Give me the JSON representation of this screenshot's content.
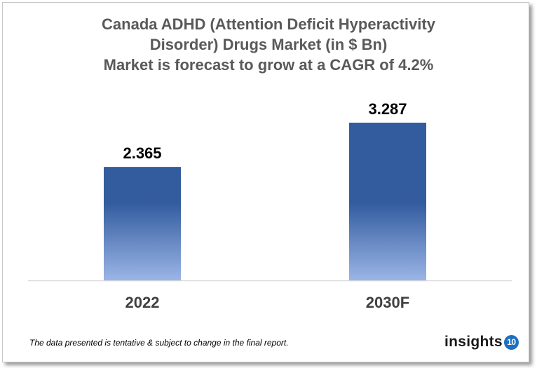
{
  "chart_data": {
    "type": "bar",
    "title_lines": [
      "Canada ADHD (Attention Deficit Hyperactivity",
      "Disorder) Drugs Market (in $ Bn)",
      "Market is forecast to grow at a CAGR of 4.2%"
    ],
    "categories": [
      "2022",
      "2030F"
    ],
    "values": [
      2.365,
      3.287
    ],
    "data_labels": [
      "2.365",
      "3.287"
    ],
    "xlabel": "",
    "ylabel": "",
    "grid": false,
    "bar_color": "#335C9F",
    "bar_gradient_bottom": "#9BB5E6"
  },
  "footer": {
    "note": "The data presented is tentative & subject to change in the final report."
  },
  "logo": {
    "text": "insights",
    "badge": "10",
    "badge_color": "#1F6FC0"
  }
}
